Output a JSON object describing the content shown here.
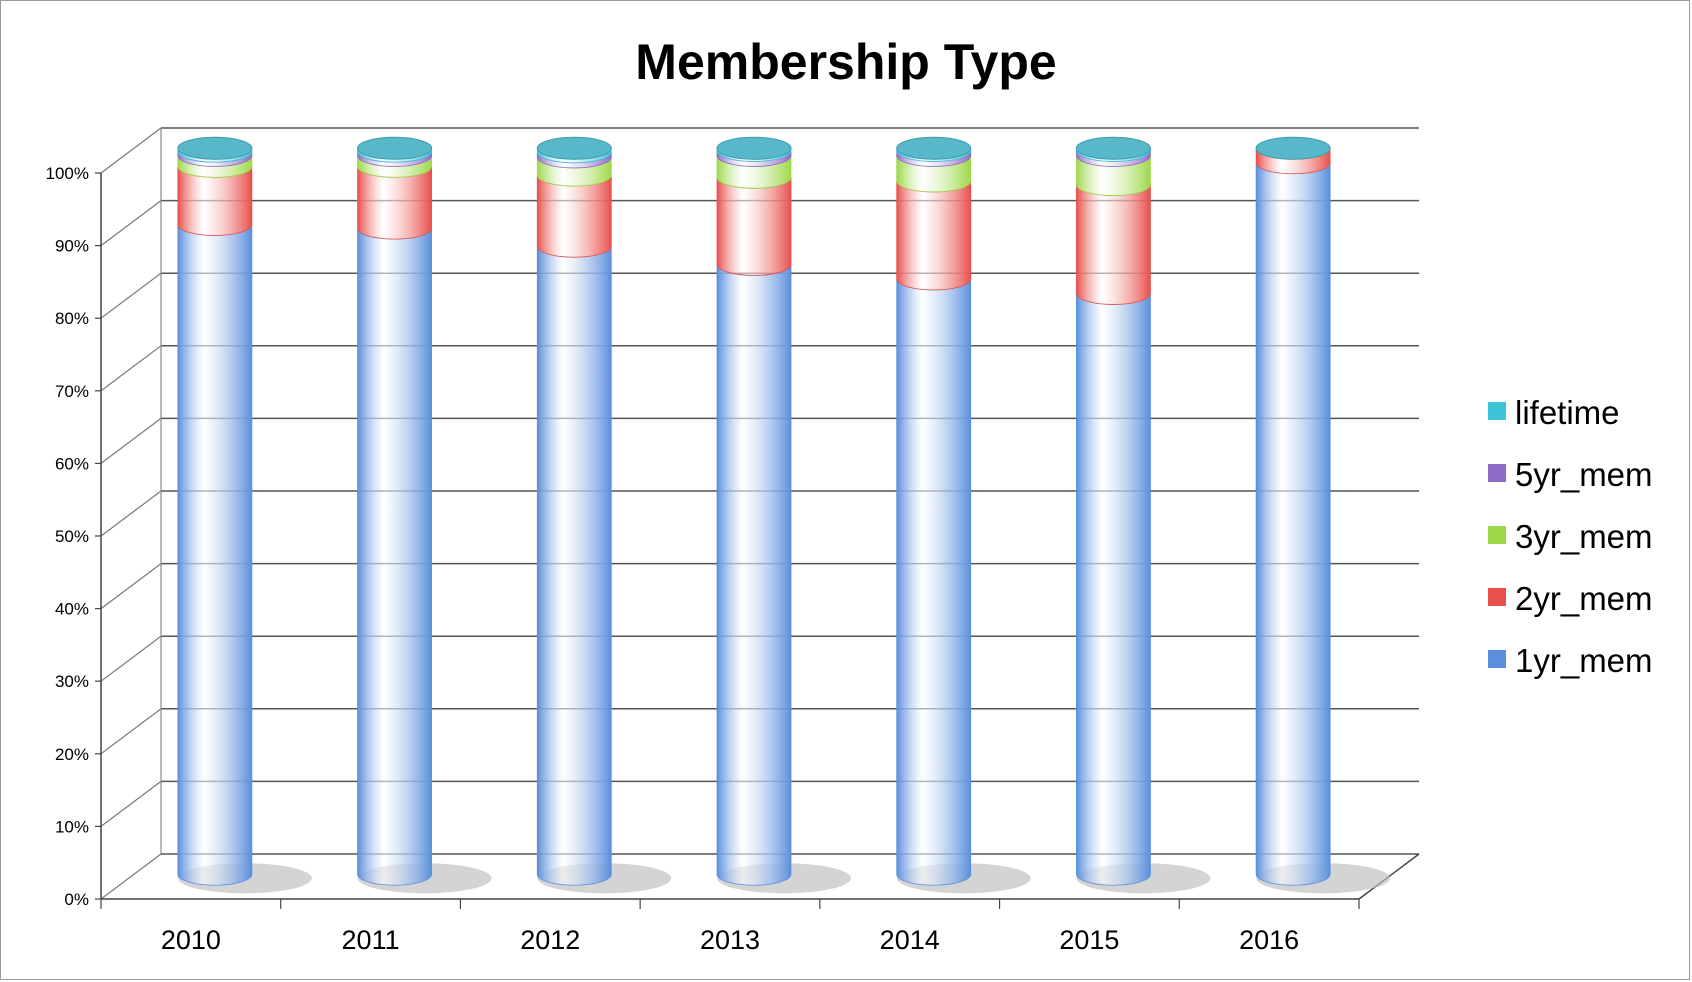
{
  "chart_data": {
    "type": "bar",
    "stacked": "percent",
    "title": "Membership Type",
    "categories": [
      "2010",
      "2011",
      "2012",
      "2013",
      "2014",
      "2015",
      "2016"
    ],
    "series": [
      {
        "name": "1yr_mem",
        "color": "#5b8fdc",
        "values": [
          89.5,
          89.0,
          86.5,
          84.0,
          82.0,
          80.0,
          98.0
        ]
      },
      {
        "name": "2yr_mem",
        "color": "#e8504c",
        "values": [
          8.0,
          8.5,
          9.8,
          12.0,
          13.5,
          15.0,
          2.0
        ]
      },
      {
        "name": "3yr_mem",
        "color": "#9ed84a",
        "values": [
          1.5,
          1.5,
          2.5,
          3.0,
          3.5,
          4.0,
          0
        ]
      },
      {
        "name": "5yr_mem",
        "color": "#8e6bc8",
        "values": [
          0.6,
          0.6,
          0.7,
          0.7,
          0.7,
          0.7,
          0
        ]
      },
      {
        "name": "lifetime",
        "color": "#3fc3d8",
        "values": [
          0.4,
          0.4,
          0.5,
          0.3,
          0.3,
          0.3,
          0
        ]
      }
    ],
    "y_ticks": [
      "0%",
      "10%",
      "20%",
      "30%",
      "40%",
      "50%",
      "60%",
      "70%",
      "80%",
      "90%",
      "100%"
    ],
    "ylim": [
      0,
      100
    ],
    "grid": true,
    "legend": "right"
  }
}
